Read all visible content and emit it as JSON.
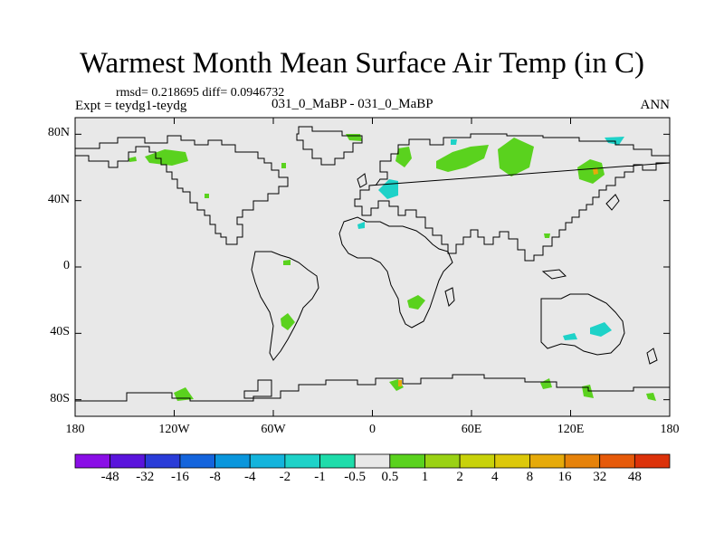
{
  "title": "Warmest Month Mean Surface Air Temp (in C)",
  "stats_line": "rmsd= 0.218695 diff= 0.0946732",
  "left_label": "Expt = teydg1-teydg",
  "center_label": "031_0_MaBP - 031_0_MaBP",
  "right_label": "ANN",
  "map": {
    "projection": "cylindrical-equidistant",
    "lon_range": [
      -180,
      180
    ],
    "lat_range": [
      -90,
      90
    ],
    "background_color": "#e8e8e8",
    "coastline_color": "#000000",
    "y_ticks": [
      {
        "lat": 80,
        "label": "80N"
      },
      {
        "lat": 40,
        "label": "40N"
      },
      {
        "lat": 0,
        "label": "0"
      },
      {
        "lat": -40,
        "label": "40S"
      },
      {
        "lat": -80,
        "label": "80S"
      }
    ],
    "x_ticks": [
      {
        "lon": -180,
        "label": "180"
      },
      {
        "lon": -120,
        "label": "120W"
      },
      {
        "lon": -60,
        "label": "60W"
      },
      {
        "lon": 0,
        "label": "0"
      },
      {
        "lon": 60,
        "label": "60E"
      },
      {
        "lon": 120,
        "label": "120E"
      },
      {
        "lon": 180,
        "label": "180"
      }
    ]
  },
  "colorbar": {
    "colors": [
      "#8a0ee6",
      "#5a14dc",
      "#2a3cd8",
      "#1464dc",
      "#0a96dc",
      "#14b4dc",
      "#1ed2c8",
      "#1edcaa",
      "#e8e8e8",
      "#5ad21e",
      "#9ad214",
      "#c8d20a",
      "#dcc80a",
      "#e6aa0a",
      "#e6820a",
      "#e65a0a",
      "#dc320a"
    ],
    "labels": [
      "-48",
      "-32",
      "-16",
      "-8",
      "-4",
      "-2",
      "-1",
      "-0.5",
      "0.5",
      "1",
      "2",
      "4",
      "8",
      "16",
      "32",
      "48"
    ]
  }
}
